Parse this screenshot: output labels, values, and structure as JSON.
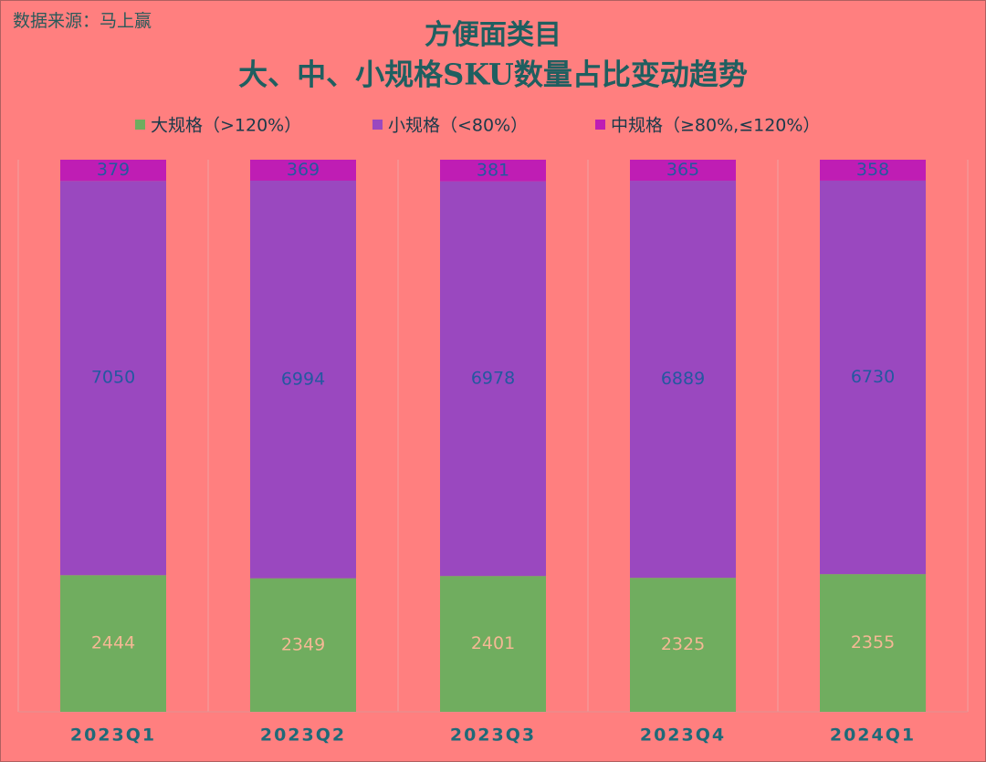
{
  "chart_data": {
    "type": "stacked_bar_100",
    "source": "数据来源：马上赢",
    "title": "方便面类目",
    "subtitle": "大、中、小规格SKU数量占比变动趋势",
    "categories": [
      "2023Q1",
      "2023Q2",
      "2023Q3",
      "2023Q4",
      "2024Q1"
    ],
    "series": [
      {
        "name": "大规格（>120%）",
        "color": "#70ad5f",
        "values": [
          2444,
          2349,
          2401,
          2325,
          2355
        ]
      },
      {
        "name": "小规格（<80%）",
        "color": "#9a48bf",
        "values": [
          7050,
          6994,
          6978,
          6889,
          6730
        ]
      },
      {
        "name": "中规格（≥80%,≤120%）",
        "color": "#bf1db4",
        "values": [
          379,
          369,
          381,
          365,
          358
        ]
      }
    ],
    "grid": true
  }
}
